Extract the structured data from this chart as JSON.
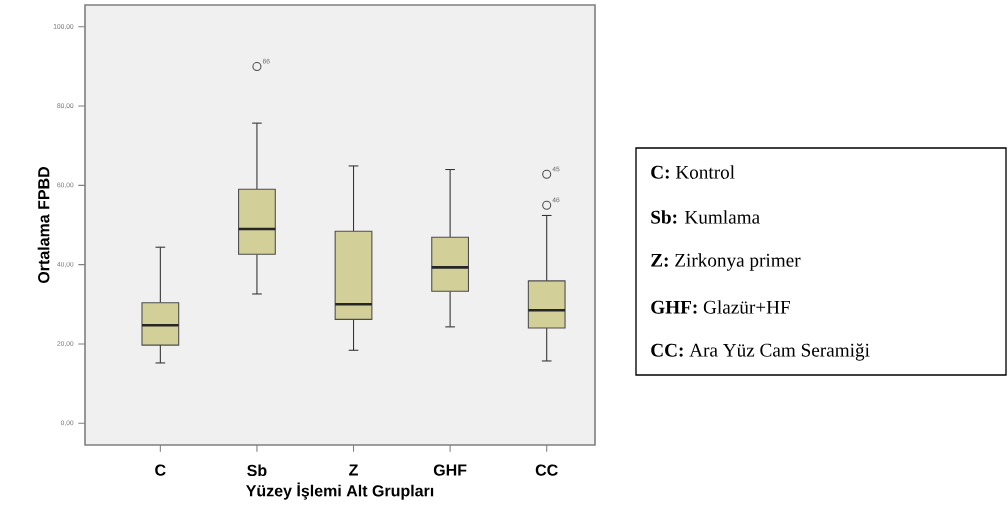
{
  "chart_data": {
    "type": "box",
    "xlabel": "Yüzey İşlemi Alt Grupları",
    "ylabel": "Ortalama FPBD",
    "categories": [
      "C",
      "Sb",
      "Z",
      "GHF",
      "CC"
    ],
    "series": [
      {
        "color": "#d3cf98",
        "boxes": [
          {
            "low": 15.2,
            "q1": 19.7,
            "median": 24.7,
            "q3": 30.4,
            "high": 44.4
          },
          {
            "low": 32.6,
            "q1": 42.6,
            "median": 49.0,
            "q3": 59.0,
            "high": 75.7,
            "outliers": [
              90.0
            ]
          },
          {
            "low": 18.4,
            "q1": 26.2,
            "median": 30.0,
            "q3": 48.4,
            "high": 64.9
          },
          {
            "low": 24.3,
            "q1": 33.3,
            "median": 39.3,
            "q3": 46.9,
            "high": 64.0
          },
          {
            "low": 15.7,
            "q1": 24.0,
            "median": 28.5,
            "q3": 35.9,
            "high": 52.4,
            "outliers": [
              62.8,
              55.0
            ]
          }
        ]
      }
    ],
    "ylim": [
      -5.5,
      105.5
    ],
    "yticks": [
      {
        "value": 0,
        "label": "0,00"
      },
      {
        "value": 20,
        "label": "20,00"
      },
      {
        "value": 40,
        "label": "40,00"
      },
      {
        "value": 60,
        "label": "60,00"
      },
      {
        "value": 80,
        "label": "80,00"
      },
      {
        "value": 100,
        "label": "100,00"
      }
    ],
    "marker": "circle",
    "annotations": [
      "66",
      "45",
      "46",
      "**C:** Kontrol",
      "**Sb:** Kumlama",
      "**Z:** Zirkonya primer",
      "**GHF:** Glazür+HF",
      "**CC:** Ara Yüz Cam Seramiği"
    ]
  }
}
